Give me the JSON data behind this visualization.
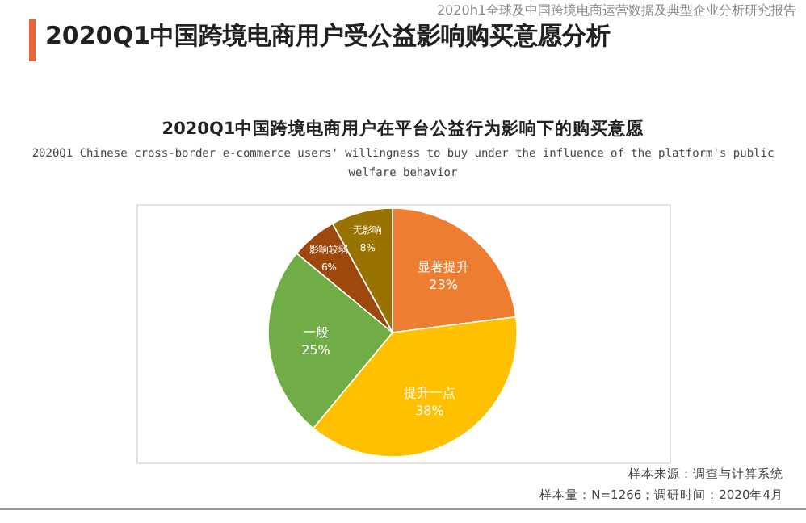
{
  "chart_data": {
    "type": "pie",
    "title": "2020Q1中国跨境电商用户受公益影响购买意愿分析",
    "subtitle": "2020Q1中国跨境电商用户在平台公益行为影响下的购买意愿",
    "categories": [
      "显著提升",
      "提升一点",
      "一般",
      "影响较弱",
      "无影响"
    ],
    "values": [
      23,
      38,
      25,
      6,
      8
    ],
    "colors": [
      "#ed7d31",
      "#ffc000",
      "#70ad47",
      "#9e480e",
      "#997300"
    ],
    "value_labels": [
      "23%",
      "38%",
      "25%",
      "6%",
      "8%"
    ],
    "annotations": [
      "2020h1全球及中国跨境电商运营数据及典型企业分析研究报告",
      "2020Q1 Chinese cross-border e-commerce users' willingness to buy under the influence of the platform's public welfare behavior",
      "样本来源：调查与计算系统",
      "样本量：N=1266；调研时间：2020年4月"
    ]
  }
}
